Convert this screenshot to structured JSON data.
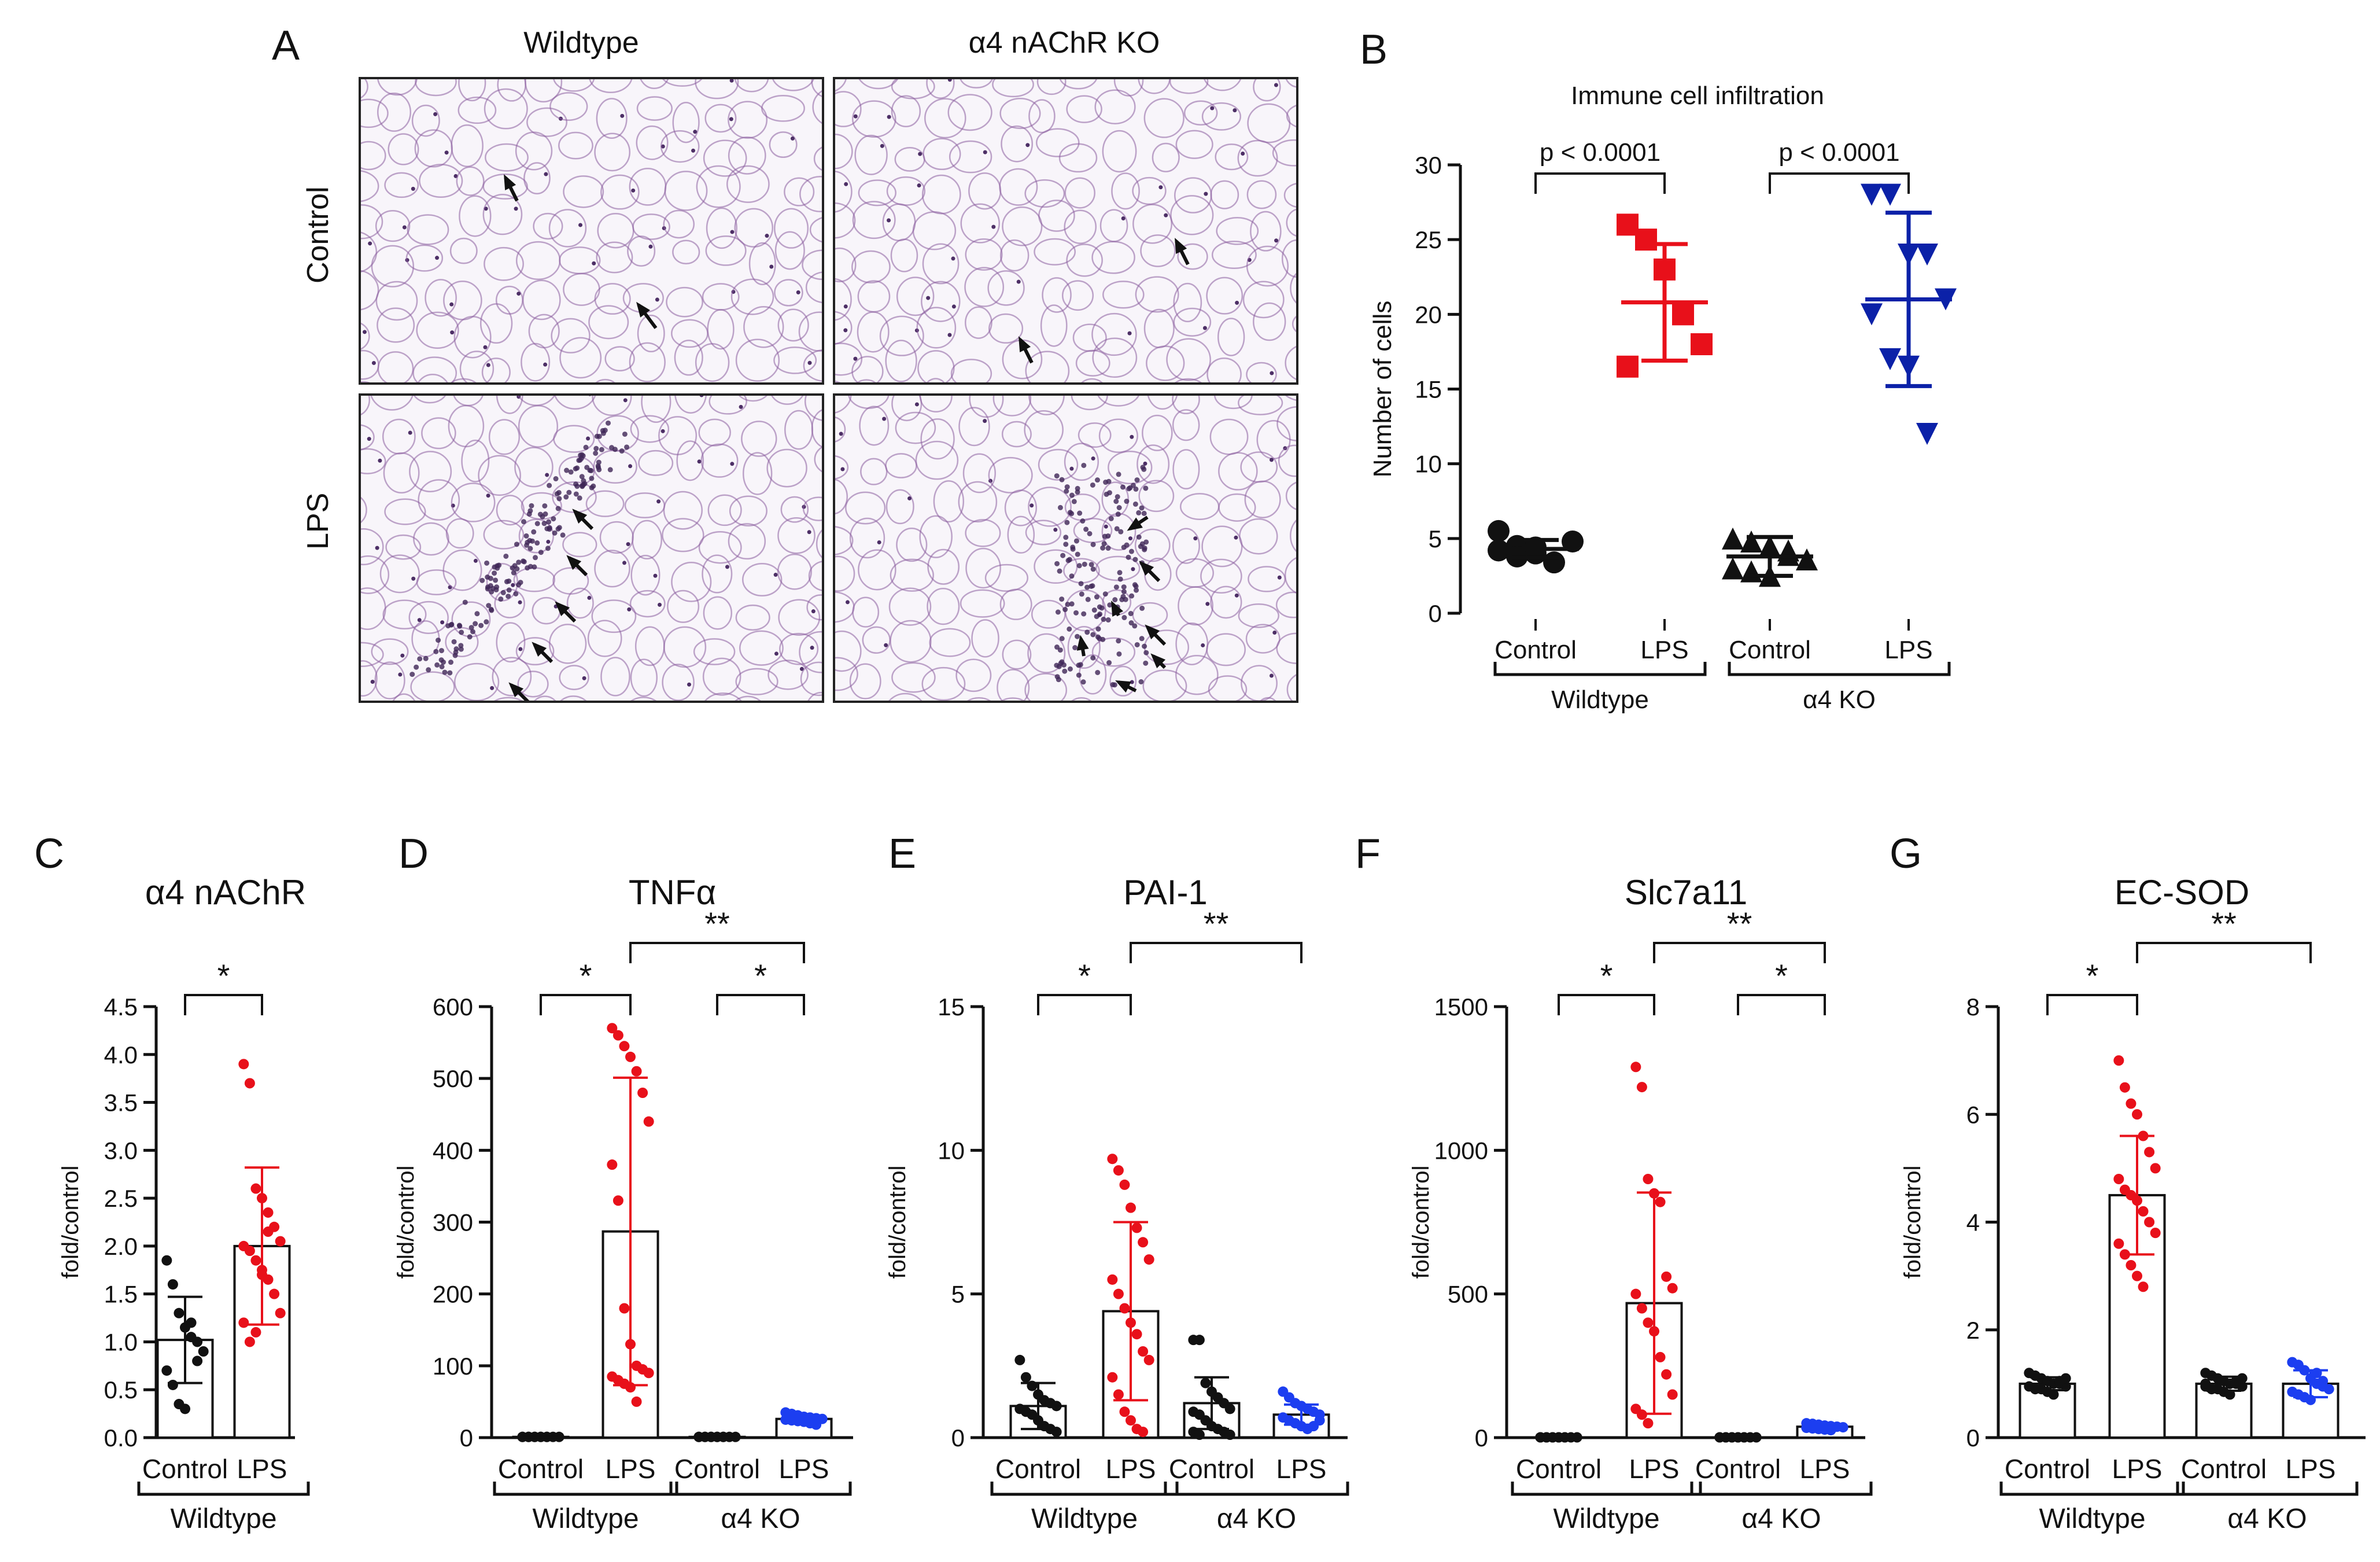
{
  "figure": {
    "background": "#ffffff"
  },
  "panel_a": {
    "letter": "A",
    "columns": [
      "Wildtype",
      "α4 nAChR KO"
    ],
    "rows": [
      "Control",
      "LPS"
    ],
    "images": [
      {
        "name": "wildtype-control-micrograph",
        "arrows": 2
      },
      {
        "name": "ko-control-micrograph",
        "arrows": 2
      },
      {
        "name": "wildtype-lps-micrograph",
        "arrows": 5
      },
      {
        "name": "ko-lps-micrograph",
        "arrows": 7
      }
    ],
    "tissue_color": "#8a5c9e"
  },
  "colors": {
    "black": "#111111",
    "red": "#e8101a",
    "darkblue": "#0b21a8",
    "blue": "#1c3ef0"
  },
  "chart_data": [
    {
      "id": "B",
      "letter": "B",
      "type": "scatter",
      "title": "Immune cell infiltration",
      "ylabel": "Number of cells",
      "ylim": [
        0,
        30
      ],
      "yticks": [
        0,
        5,
        10,
        15,
        20,
        25,
        30
      ],
      "ytick_labels": [
        "0",
        "5",
        "10",
        "15",
        "20",
        "25",
        "30"
      ],
      "categories": [
        "Control",
        "LPS",
        "Control",
        "LPS"
      ],
      "groups": [
        {
          "label": "Wildtype",
          "from": 0,
          "to": 1
        },
        {
          "label": "α4 KO",
          "from": 2,
          "to": 3
        }
      ],
      "series": [
        {
          "name": "Control",
          "group": "Wildtype",
          "color": "#111111",
          "marker": "circle",
          "mean": 4.3,
          "sd": 0.6,
          "points": [
            4.2,
            4.5,
            4.0,
            3.4,
            4.8,
            5.5,
            3.8,
            4.4
          ]
        },
        {
          "name": "LPS",
          "group": "Wildtype",
          "color": "#e8101a",
          "marker": "square",
          "mean": 20.8,
          "sd": 3.9,
          "points": [
            26.0,
            25.0,
            23.0,
            20.0,
            18.0,
            16.5
          ]
        },
        {
          "name": "Control",
          "group": "α4 KO",
          "color": "#111111",
          "marker": "triangle",
          "mean": 3.8,
          "sd": 1.3,
          "points": [
            5.0,
            4.8,
            4.5,
            3.9,
            3.6,
            3.0,
            2.8,
            2.5,
            4.2
          ]
        },
        {
          "name": "LPS",
          "group": "α4 KO",
          "color": "#0b21a8",
          "marker": "tri-down",
          "mean": 21.0,
          "sd": 5.8,
          "points": [
            28.0,
            28.0,
            24.0,
            24.0,
            21.0,
            20.0,
            17.0,
            16.5,
            12.0
          ]
        }
      ],
      "comparisons": [
        {
          "from": 0,
          "to": 1,
          "label": "p < 0.0001"
        },
        {
          "from": 2,
          "to": 3,
          "label": "p < 0.0001"
        }
      ]
    },
    {
      "id": "C",
      "letter": "C",
      "type": "bar",
      "title": "α4 nAChR",
      "ylabel": "fold/control",
      "ylim": [
        0,
        4.5
      ],
      "yticks": [
        0,
        0.5,
        1,
        1.5,
        2,
        2.5,
        3,
        3.5,
        4,
        4.5
      ],
      "ytick_labels": [
        "0.0",
        "0.5",
        "1.0",
        "1.5",
        "2.0",
        "2.5",
        "3.0",
        "3.5",
        "4.0",
        "4.5"
      ],
      "categories": [
        "Control",
        "LPS"
      ],
      "groups": [
        {
          "label": "Wildtype",
          "from": 0,
          "to": 1
        }
      ],
      "series": [
        {
          "name": "Control",
          "color": "#111111",
          "mean": 1.02,
          "sd": 0.45,
          "points": [
            1.85,
            1.6,
            1.3,
            1.15,
            1.05,
            1.0,
            0.9,
            0.7,
            0.55,
            0.35,
            0.3,
            1.2,
            0.8
          ]
        },
        {
          "name": "LPS",
          "color": "#e8101a",
          "mean": 2.0,
          "sd": 0.82,
          "points": [
            3.9,
            3.7,
            2.6,
            2.5,
            2.35,
            2.2,
            2.05,
            2.0,
            1.95,
            1.85,
            1.7,
            1.65,
            1.5,
            1.3,
            1.2,
            1.0,
            1.1,
            1.75,
            2.15
          ]
        }
      ],
      "comparisons": [
        {
          "from": 0,
          "to": 1,
          "label": "*",
          "level": 0
        }
      ]
    },
    {
      "id": "D",
      "letter": "D",
      "type": "bar",
      "title": "TNFα",
      "ylabel": "fold/control",
      "ylim": [
        0,
        600
      ],
      "yticks": [
        0,
        100,
        200,
        300,
        400,
        500,
        600
      ],
      "ytick_labels": [
        "0",
        "100",
        "200",
        "300",
        "400",
        "500",
        "600"
      ],
      "categories": [
        "Control",
        "LPS",
        "Control",
        "LPS"
      ],
      "groups": [
        {
          "label": "Wildtype",
          "from": 0,
          "to": 1
        },
        {
          "label": "α4 KO",
          "from": 2,
          "to": 3
        }
      ],
      "series": [
        {
          "name": "Control",
          "color": "#111111",
          "mean": 1,
          "sd": 0.5,
          "points": [
            1,
            1,
            1,
            1,
            1,
            1,
            1,
            1,
            1,
            1,
            1,
            1
          ]
        },
        {
          "name": "LPS",
          "color": "#e8101a",
          "mean": 287,
          "sd": 214,
          "points": [
            570,
            560,
            545,
            530,
            510,
            480,
            440,
            380,
            330,
            180,
            130,
            100,
            95,
            90,
            85,
            80,
            75,
            70,
            50
          ]
        },
        {
          "name": "Control",
          "color": "#111111",
          "mean": 1,
          "sd": 0.5,
          "points": [
            1,
            1,
            1,
            1,
            1,
            1,
            1,
            1,
            1,
            1,
            1,
            1
          ]
        },
        {
          "name": "LPS",
          "color": "#1c3ef0",
          "mean": 26,
          "sd": 5,
          "points": [
            35,
            33,
            31,
            29,
            28,
            27,
            26,
            25,
            24,
            23,
            22,
            20,
            18
          ]
        }
      ],
      "comparisons": [
        {
          "from": 0,
          "to": 1,
          "label": "*",
          "level": 0
        },
        {
          "from": 2,
          "to": 3,
          "label": "*",
          "level": 0
        },
        {
          "from": 1,
          "to": 3,
          "label": "**",
          "level": 1
        }
      ]
    },
    {
      "id": "E",
      "letter": "E",
      "type": "bar",
      "title": "PAI-1",
      "ylabel": "fold/control",
      "ylim": [
        0,
        15
      ],
      "yticks": [
        0,
        5,
        10,
        15
      ],
      "ytick_labels": [
        "0",
        "5",
        "10",
        "15"
      ],
      "categories": [
        "Control",
        "LPS",
        "Control",
        "LPS"
      ],
      "groups": [
        {
          "label": "Wildtype",
          "from": 0,
          "to": 1
        },
        {
          "label": "α4 KO",
          "from": 2,
          "to": 3
        }
      ],
      "series": [
        {
          "name": "Control",
          "color": "#111111",
          "mean": 1.1,
          "sd": 0.8,
          "points": [
            2.7,
            2.1,
            1.8,
            1.5,
            1.3,
            1.2,
            1.1,
            1.0,
            0.9,
            0.8,
            0.6,
            0.4,
            0.3,
            0.2
          ]
        },
        {
          "name": "LPS",
          "color": "#e8101a",
          "mean": 4.4,
          "sd": 3.1,
          "points": [
            9.7,
            9.3,
            8.8,
            8.0,
            7.3,
            6.8,
            6.2,
            5.5,
            5.0,
            4.5,
            4.0,
            3.6,
            3.0,
            2.7,
            2.1,
            1.5,
            0.9,
            0.6,
            0.3,
            0.2
          ]
        },
        {
          "name": "Control",
          "color": "#111111",
          "mean": 1.2,
          "sd": 0.9,
          "points": [
            3.4,
            3.4,
            1.9,
            1.6,
            1.4,
            1.2,
            1.0,
            0.9,
            0.8,
            0.6,
            0.4,
            0.3,
            0.2,
            0.1,
            0.2,
            0.1
          ]
        },
        {
          "name": "LPS",
          "color": "#1c3ef0",
          "mean": 0.8,
          "sd": 0.35,
          "points": [
            1.6,
            1.4,
            1.2,
            1.1,
            1.0,
            0.9,
            0.8,
            0.7,
            0.6,
            0.5,
            0.4,
            0.3,
            0.4,
            0.6
          ]
        }
      ],
      "comparisons": [
        {
          "from": 0,
          "to": 1,
          "label": "*",
          "level": 0
        },
        {
          "from": 1,
          "to": 3,
          "label": "**",
          "level": 1
        }
      ]
    },
    {
      "id": "F",
      "letter": "F",
      "type": "bar",
      "title": "Slc7a11",
      "ylabel": "fold/control",
      "ylim": [
        0,
        1500
      ],
      "yticks": [
        0,
        500,
        1000,
        1500
      ],
      "ytick_labels": [
        "0",
        "500",
        "1000",
        "1500"
      ],
      "categories": [
        "Control",
        "LPS",
        "Control",
        "LPS"
      ],
      "groups": [
        {
          "label": "Wildtype",
          "from": 0,
          "to": 1
        },
        {
          "label": "α4 KO",
          "from": 2,
          "to": 3
        }
      ],
      "series": [
        {
          "name": "Control",
          "color": "#111111",
          "mean": 1,
          "sd": 0.5,
          "points": [
            1,
            1,
            1,
            1,
            1,
            1,
            1,
            1,
            1,
            1,
            1,
            1
          ]
        },
        {
          "name": "LPS",
          "color": "#e8101a",
          "mean": 468,
          "sd": 385,
          "points": [
            1290,
            1220,
            900,
            850,
            820,
            560,
            520,
            500,
            450,
            400,
            370,
            280,
            220,
            150,
            100,
            80,
            50
          ]
        },
        {
          "name": "Control",
          "color": "#111111",
          "mean": 1,
          "sd": 0.5,
          "points": [
            1,
            1,
            1,
            1,
            1,
            1,
            1,
            1,
            1,
            1,
            1,
            1
          ]
        },
        {
          "name": "LPS",
          "color": "#1c3ef0",
          "mean": 38,
          "sd": 8,
          "points": [
            50,
            48,
            45,
            42,
            40,
            38,
            36,
            34,
            32,
            30,
            28,
            26
          ]
        }
      ],
      "comparisons": [
        {
          "from": 0,
          "to": 1,
          "label": "*",
          "level": 0
        },
        {
          "from": 2,
          "to": 3,
          "label": "*",
          "level": 0
        },
        {
          "from": 1,
          "to": 3,
          "label": "**",
          "level": 1
        }
      ]
    },
    {
      "id": "G",
      "letter": "G",
      "type": "bar",
      "title": "EC-SOD",
      "ylabel": "fold/control",
      "ylim": [
        0,
        8
      ],
      "yticks": [
        0,
        2,
        4,
        6,
        8
      ],
      "ytick_labels": [
        "0",
        "2",
        "4",
        "6",
        "8"
      ],
      "categories": [
        "Control",
        "LPS",
        "Control",
        "LPS"
      ],
      "groups": [
        {
          "label": "Wildtype",
          "from": 0,
          "to": 1
        },
        {
          "label": "α4 KO",
          "from": 2,
          "to": 3
        }
      ],
      "series": [
        {
          "name": "Control",
          "color": "#111111",
          "mean": 1.0,
          "sd": 0.12,
          "points": [
            1.2,
            1.15,
            1.1,
            1.05,
            1.0,
            1.0,
            0.95,
            0.95,
            0.9,
            0.9,
            0.85,
            0.8,
            1.05,
            1.1
          ]
        },
        {
          "name": "LPS",
          "color": "#e8101a",
          "mean": 4.5,
          "sd": 1.1,
          "points": [
            7.0,
            6.5,
            6.2,
            6.0,
            5.6,
            5.3,
            5.0,
            4.8,
            4.6,
            4.5,
            4.4,
            4.2,
            4.0,
            3.8,
            3.6,
            3.4,
            3.2,
            3.0,
            2.8
          ]
        },
        {
          "name": "Control",
          "color": "#111111",
          "mean": 1.0,
          "sd": 0.13,
          "points": [
            1.2,
            1.15,
            1.1,
            1.05,
            1.0,
            1.0,
            0.95,
            0.95,
            0.9,
            0.9,
            0.85,
            0.8,
            1.05,
            1.1,
            1.0
          ]
        },
        {
          "name": "LPS",
          "color": "#1c3ef0",
          "mean": 1.0,
          "sd": 0.25,
          "points": [
            1.4,
            1.35,
            1.25,
            1.1,
            1.0,
            0.95,
            0.9,
            0.85,
            0.8,
            0.75,
            0.7,
            1.2,
            1.05
          ]
        }
      ],
      "comparisons": [
        {
          "from": 0,
          "to": 1,
          "label": "*",
          "level": 0
        },
        {
          "from": 1,
          "to": 3,
          "label": "**",
          "level": 1
        }
      ]
    }
  ]
}
